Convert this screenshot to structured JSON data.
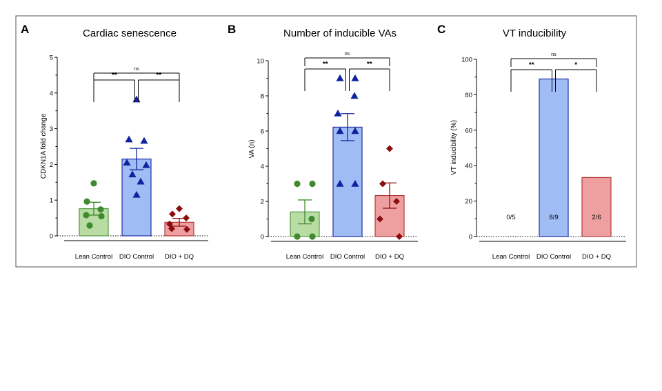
{
  "colors": {
    "lean_fill": "#b9dca5",
    "lean_stroke": "#4f9a3a",
    "lean_point": "#3f8a2e",
    "dio_fill": "#9fbcf4",
    "dio_stroke": "#1f2fa8",
    "dio_point": "#10239e",
    "dq_fill": "#eea0a0",
    "dq_stroke": "#b33a3a",
    "dq_point": "#8b0e0e",
    "axis": "#000000",
    "frame": "#555555"
  },
  "chart_data": [
    {
      "type": "bar",
      "panel": "A",
      "title": "Cardiac senescence",
      "ylabel": "CDKN1A fold change",
      "xlabel": "",
      "ylim": [
        0,
        5
      ],
      "yticks": [
        0,
        1,
        2,
        3,
        4,
        5
      ],
      "categories": [
        "Lean Control",
        "DIO Control",
        "DIO + DQ"
      ],
      "values": [
        0.76,
        2.15,
        0.38
      ],
      "sem": [
        0.18,
        0.3,
        0.11
      ],
      "points": [
        [
          1.47,
          0.96,
          0.74,
          0.58,
          0.55,
          0.29
        ],
        [
          3.82,
          2.7,
          2.66,
          2.05,
          1.98,
          1.72,
          1.52,
          1.15
        ],
        [
          0.76,
          0.61,
          0.5,
          0.33,
          0.2,
          0.18
        ]
      ],
      "markers": [
        "circle",
        "triangle",
        "diamond"
      ],
      "comparisons": [
        {
          "from": 0,
          "to": 1,
          "label": "**",
          "level": 1
        },
        {
          "from": 1,
          "to": 2,
          "label": "**",
          "level": 1
        },
        {
          "from": 0,
          "to": 2,
          "label": "ns",
          "level": 2
        }
      ]
    },
    {
      "type": "bar",
      "panel": "B",
      "title": "Number of inducible VAs",
      "ylabel": "VA (n)",
      "xlabel": "",
      "ylim": [
        0,
        10
      ],
      "yticks": [
        0,
        2,
        4,
        6,
        8,
        10
      ],
      "categories": [
        "Lean Control",
        "DIO Control",
        "DIO + DQ"
      ],
      "values": [
        1.4,
        6.22,
        2.33
      ],
      "sem": [
        0.68,
        0.77,
        0.72
      ],
      "points": [
        [
          3,
          3,
          1,
          0,
          0
        ],
        [
          9,
          9,
          8,
          7,
          6,
          6,
          3,
          3
        ],
        [
          5,
          3,
          2,
          1,
          0
        ]
      ],
      "markers": [
        "circle",
        "triangle",
        "diamond"
      ],
      "comparisons": [
        {
          "from": 0,
          "to": 1,
          "label": "**",
          "level": 1
        },
        {
          "from": 1,
          "to": 2,
          "label": "**",
          "level": 1
        },
        {
          "from": 0,
          "to": 2,
          "label": "ns",
          "level": 2
        }
      ]
    },
    {
      "type": "bar",
      "panel": "C",
      "title": "VT inducibility",
      "ylabel": "VT inducibility (%)",
      "xlabel": "",
      "ylim": [
        0,
        100
      ],
      "yticks": [
        0,
        20,
        40,
        60,
        80,
        100
      ],
      "categories": [
        "Lean Control",
        "DIO Control",
        "DIO + DQ"
      ],
      "values": [
        0,
        88.9,
        33.3
      ],
      "bar_labels": [
        "0/5",
        "8/9",
        "2/6"
      ],
      "comparisons": [
        {
          "from": 0,
          "to": 1,
          "label": "**",
          "level": 1
        },
        {
          "from": 1,
          "to": 2,
          "label": "*",
          "level": 1
        },
        {
          "from": 0,
          "to": 2,
          "label": "ns",
          "level": 2
        }
      ]
    }
  ]
}
